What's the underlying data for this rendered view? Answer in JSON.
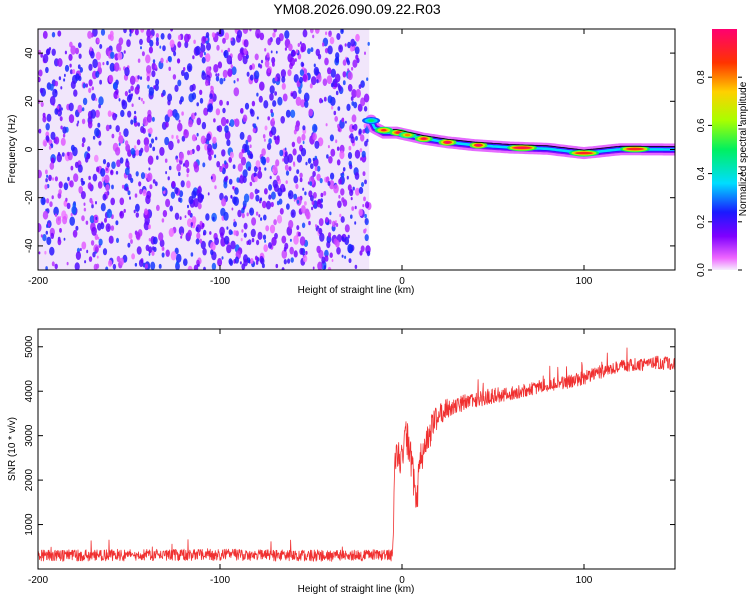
{
  "title": "YM08.2026.090.09.22.R03",
  "chart_data": [
    {
      "type": "heatmap",
      "xlabel": "Height of straight line (km)",
      "ylabel": "Frequency (Hz)",
      "xlim": [
        -200,
        150
      ],
      "ylim": [
        -50,
        50
      ],
      "x_ticks": [
        "-200",
        "-100",
        "0",
        "100"
      ],
      "x_tick_values": [
        -200,
        -100,
        0,
        100
      ],
      "y_ticks": [
        "-40",
        "-20",
        "0",
        "20",
        "40"
      ],
      "y_tick_values": [
        -40,
        -20,
        0,
        20,
        40
      ],
      "colorbar": {
        "label": "Normalized spectral amplitude",
        "range": [
          0,
          1
        ],
        "ticks": [
          "0.0",
          "0.2",
          "0.4",
          "0.6",
          "0.8"
        ],
        "tick_values": [
          0.0,
          0.2,
          0.4,
          0.6,
          0.8
        ]
      },
      "noise_region": {
        "x_from": -200,
        "x_to": -18
      },
      "signal_track": [
        {
          "x": -17,
          "f": 12
        },
        {
          "x": -15,
          "f": 9
        },
        {
          "x": -10,
          "f": 7
        },
        {
          "x": -3,
          "f": 7
        },
        {
          "x": 3,
          "f": 6
        },
        {
          "x": 12,
          "f": 4.5
        },
        {
          "x": 25,
          "f": 3
        },
        {
          "x": 40,
          "f": 1.8
        },
        {
          "x": 60,
          "f": 0.8
        },
        {
          "x": 80,
          "f": 0.3
        },
        {
          "x": 100,
          "f": -1.5
        },
        {
          "x": 120,
          "f": 0.1
        },
        {
          "x": 150,
          "f": 0
        }
      ],
      "signal_hotspots": [
        {
          "x": -17,
          "f": 12,
          "amp": 0.5
        },
        {
          "x": -10,
          "f": 8,
          "amp": 0.9
        },
        {
          "x": -2,
          "f": 7,
          "amp": 0.95
        },
        {
          "x": 3,
          "f": 6,
          "amp": 0.8
        },
        {
          "x": 12,
          "f": 4.5,
          "amp": 0.95
        },
        {
          "x": 25,
          "f": 3,
          "amp": 1.0
        },
        {
          "x": 42,
          "f": 1.8,
          "amp": 1.0
        },
        {
          "x": 66,
          "f": 0.7,
          "amp": 0.95
        },
        {
          "x": 100,
          "f": -1.5,
          "amp": 0.9
        },
        {
          "x": 128,
          "f": 0.2,
          "amp": 0.9
        }
      ]
    },
    {
      "type": "line",
      "xlabel": "Height of straight line (km)",
      "ylabel": "SNR (10 * v/v)",
      "xlim": [
        -200,
        150
      ],
      "ylim": [
        0,
        5400
      ],
      "x_ticks": [
        "-200",
        "-100",
        "0",
        "100"
      ],
      "x_tick_values": [
        -200,
        -100,
        0,
        100
      ],
      "y_ticks": [
        "1000",
        "2000",
        "3000",
        "4000",
        "5000"
      ],
      "y_tick_values": [
        1000,
        2000,
        3000,
        4000,
        5000
      ],
      "color": "#f03030",
      "series": [
        {
          "x": [
            -200,
            -150,
            -100,
            -50,
            -5,
            -4,
            -3,
            -2,
            -1,
            0,
            2,
            4,
            6,
            8,
            10,
            15,
            20,
            30,
            40,
            50,
            60,
            70,
            80,
            90,
            100,
            110,
            120,
            130,
            140,
            150
          ],
          "y": [
            300,
            310,
            320,
            300,
            310,
            2400,
            2500,
            2700,
            2300,
            2500,
            3200,
            2600,
            2200,
            1500,
            2400,
            3000,
            3500,
            3700,
            3800,
            3900,
            3950,
            4050,
            4150,
            4200,
            4300,
            4450,
            4550,
            4600,
            4650,
            4600
          ],
          "noise_amplitude": [
            260,
            260,
            260,
            260,
            260,
            500,
            600,
            700,
            700,
            700,
            800,
            900,
            1000,
            900,
            800,
            700,
            500,
            400,
            350,
            350,
            300,
            300,
            300,
            300,
            300,
            300,
            300,
            300,
            300,
            300
          ]
        }
      ]
    }
  ]
}
